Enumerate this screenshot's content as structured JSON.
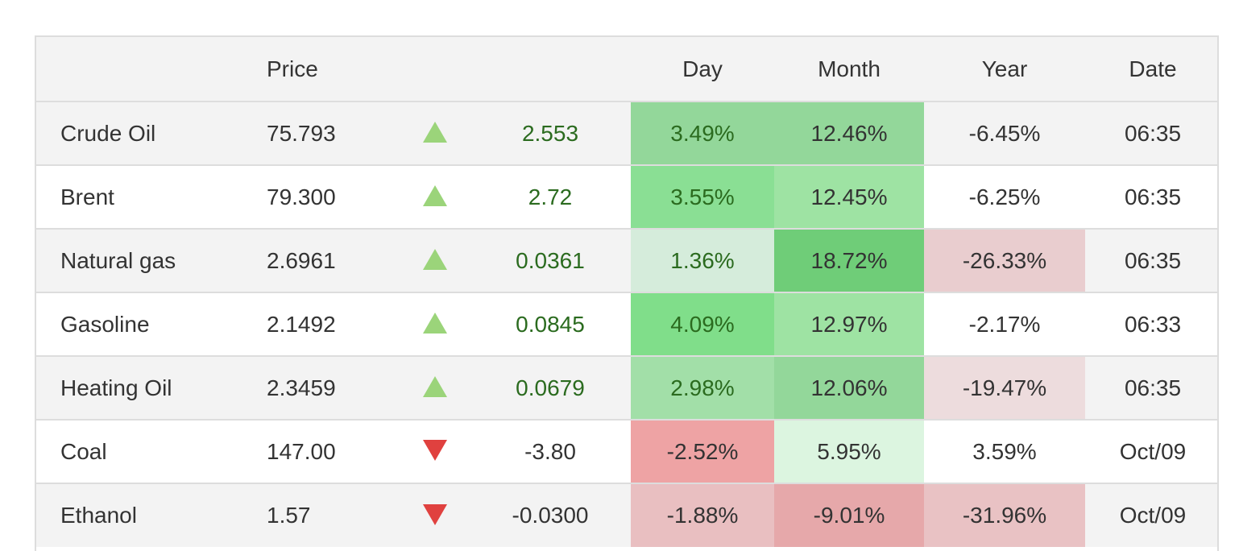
{
  "headers": {
    "name": "",
    "price": "Price",
    "arrow": "",
    "change": "",
    "day": "Day",
    "month": "Month",
    "year": "Year",
    "date": "Date"
  },
  "colors": {
    "up_arrow": "#9bd47a",
    "down_arrow": "#e0413f",
    "positive_text": "#2b6b1f",
    "header_bg": "#f3f3f3"
  },
  "rows": [
    {
      "name": "Crude Oil",
      "price": "75.793",
      "direction": "up",
      "change": "2.553",
      "day": "3.49%",
      "month": "12.46%",
      "year": "-6.45%",
      "date": "06:35",
      "day_bg": "#93d79a",
      "month_bg": "#93d79a",
      "year_bg": "#f3f3f3"
    },
    {
      "name": "Brent",
      "price": "79.300",
      "direction": "up",
      "change": "2.72",
      "day": "3.55%",
      "month": "12.45%",
      "year": "-6.25%",
      "date": "06:35",
      "day_bg": "#8adf94",
      "month_bg": "#9ee3a3",
      "year_bg": "#ffffff"
    },
    {
      "name": "Natural gas",
      "price": "2.6961",
      "direction": "up",
      "change": "0.0361",
      "day": "1.36%",
      "month": "18.72%",
      "year": "-26.33%",
      "date": "06:35",
      "day_bg": "#d5ecdb",
      "month_bg": "#6fcd78",
      "year_bg": "#e9cdcf"
    },
    {
      "name": "Gasoline",
      "price": "2.1492",
      "direction": "up",
      "change": "0.0845",
      "day": "4.09%",
      "month": "12.97%",
      "year": "-2.17%",
      "date": "06:33",
      "day_bg": "#80de8a",
      "month_bg": "#9ee3a3",
      "year_bg": "#ffffff"
    },
    {
      "name": "Heating Oil",
      "price": "2.3459",
      "direction": "up",
      "change": "0.0679",
      "day": "2.98%",
      "month": "12.06%",
      "year": "-19.47%",
      "date": "06:35",
      "day_bg": "#a2dfa8",
      "month_bg": "#93d79a",
      "year_bg": "#eddcdd"
    },
    {
      "name": "Coal",
      "price": "147.00",
      "direction": "down",
      "change": "-3.80",
      "day": "-2.52%",
      "month": "5.95%",
      "year": "3.59%",
      "date": "Oct/09",
      "day_bg": "#eea3a4",
      "month_bg": "#dcf5e0",
      "year_bg": "#ffffff"
    },
    {
      "name": "Ethanol",
      "price": "1.57",
      "direction": "down",
      "change": "-0.0300",
      "day": "-1.88%",
      "month": "-9.01%",
      "year": "-31.96%",
      "date": "Oct/09",
      "day_bg": "#e9bfc1",
      "month_bg": "#e6a8aa",
      "year_bg": "#e9c2c4"
    }
  ]
}
